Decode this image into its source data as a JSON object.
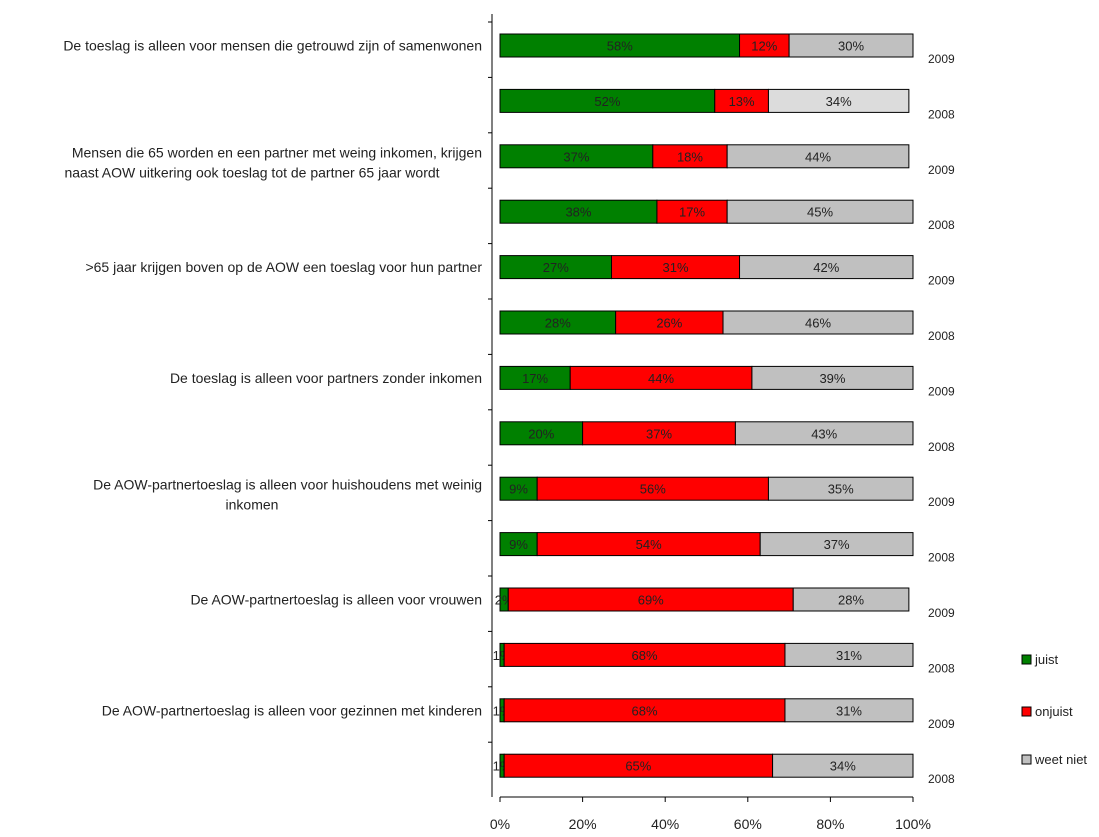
{
  "chart_data": {
    "type": "bar",
    "orientation": "horizontal",
    "stacked": "percent",
    "xlim": [
      0,
      100
    ],
    "x_ticks": [
      "0%",
      "20%",
      "40%",
      "60%",
      "80%",
      "100%"
    ],
    "legend_position": "right",
    "colors": {
      "juist": "#008000",
      "onjuist": "#ff0000",
      "weet niet": "#c0c0c0",
      "weet niet (2008 row 2)": "#dcdcdc"
    },
    "statements": [
      {
        "label_lines": [
          "De toeslag is alleen voor mensen die getrouwd zijn of samenwonen"
        ]
      },
      {
        "label_lines": [
          "Mensen die 65 worden en een partner met weing inkomen, krijgen",
          "naast AOW uitkering ook toeslag tot de partner 65 jaar wordt"
        ]
      },
      {
        "label_lines": [
          ">65 jaar krijgen boven op de AOW een toeslag voor hun partner"
        ]
      },
      {
        "label_lines": [
          "De toeslag is alleen voor partners zonder inkomen"
        ]
      },
      {
        "label_lines": [
          "De AOW-partnertoeslag is alleen voor huishoudens met weinig",
          "inkomen"
        ]
      },
      {
        "label_lines": [
          "De AOW-partnertoeslag is alleen voor vrouwen"
        ]
      },
      {
        "label_lines": [
          "De AOW-partnertoeslag is alleen voor gezinnen met kinderen"
        ]
      }
    ],
    "rows": [
      {
        "year": "2009",
        "values": [
          58,
          12,
          30
        ],
        "labels": [
          "58%",
          "12%",
          "30%"
        ]
      },
      {
        "year": "2008",
        "values": [
          52,
          13,
          34
        ],
        "labels": [
          "52%",
          "13%",
          "34%"
        ]
      },
      {
        "year": "2009",
        "values": [
          37,
          18,
          44
        ],
        "labels": [
          "37%",
          "18%",
          "44%"
        ]
      },
      {
        "year": "2008",
        "values": [
          38,
          17,
          45
        ],
        "labels": [
          "38%",
          "17%",
          "45%"
        ]
      },
      {
        "year": "2009",
        "values": [
          27,
          31,
          42
        ],
        "labels": [
          "27%",
          "31%",
          "42%"
        ]
      },
      {
        "year": "2008",
        "values": [
          28,
          26,
          46
        ],
        "labels": [
          "28%",
          "26%",
          "46%"
        ]
      },
      {
        "year": "2009",
        "values": [
          17,
          44,
          39
        ],
        "labels": [
          "17%",
          "44%",
          "39%"
        ]
      },
      {
        "year": "2008",
        "values": [
          20,
          37,
          43
        ],
        "labels": [
          "20%",
          "37%",
          "43%"
        ]
      },
      {
        "year": "2009",
        "values": [
          9,
          56,
          35
        ],
        "labels": [
          "9%",
          "56%",
          "35%"
        ]
      },
      {
        "year": "2008",
        "values": [
          9,
          54,
          37
        ],
        "labels": [
          "9%",
          "54%",
          "37%"
        ]
      },
      {
        "year": "2009",
        "values": [
          2,
          69,
          28
        ],
        "labels": [
          "2%",
          "69%",
          "28%"
        ]
      },
      {
        "year": "2008",
        "values": [
          1,
          68,
          31
        ],
        "labels": [
          "1%",
          "68%",
          "31%"
        ]
      },
      {
        "year": "2009",
        "values": [
          1,
          68,
          31
        ],
        "labels": [
          "1%",
          "68%",
          "31%"
        ]
      },
      {
        "year": "2008",
        "values": [
          1,
          65,
          34
        ],
        "labels": [
          "1%",
          "65%",
          "34%"
        ]
      }
    ],
    "series": [
      {
        "name": "juist"
      },
      {
        "name": "onjuist"
      },
      {
        "name": "weet niet"
      }
    ]
  }
}
